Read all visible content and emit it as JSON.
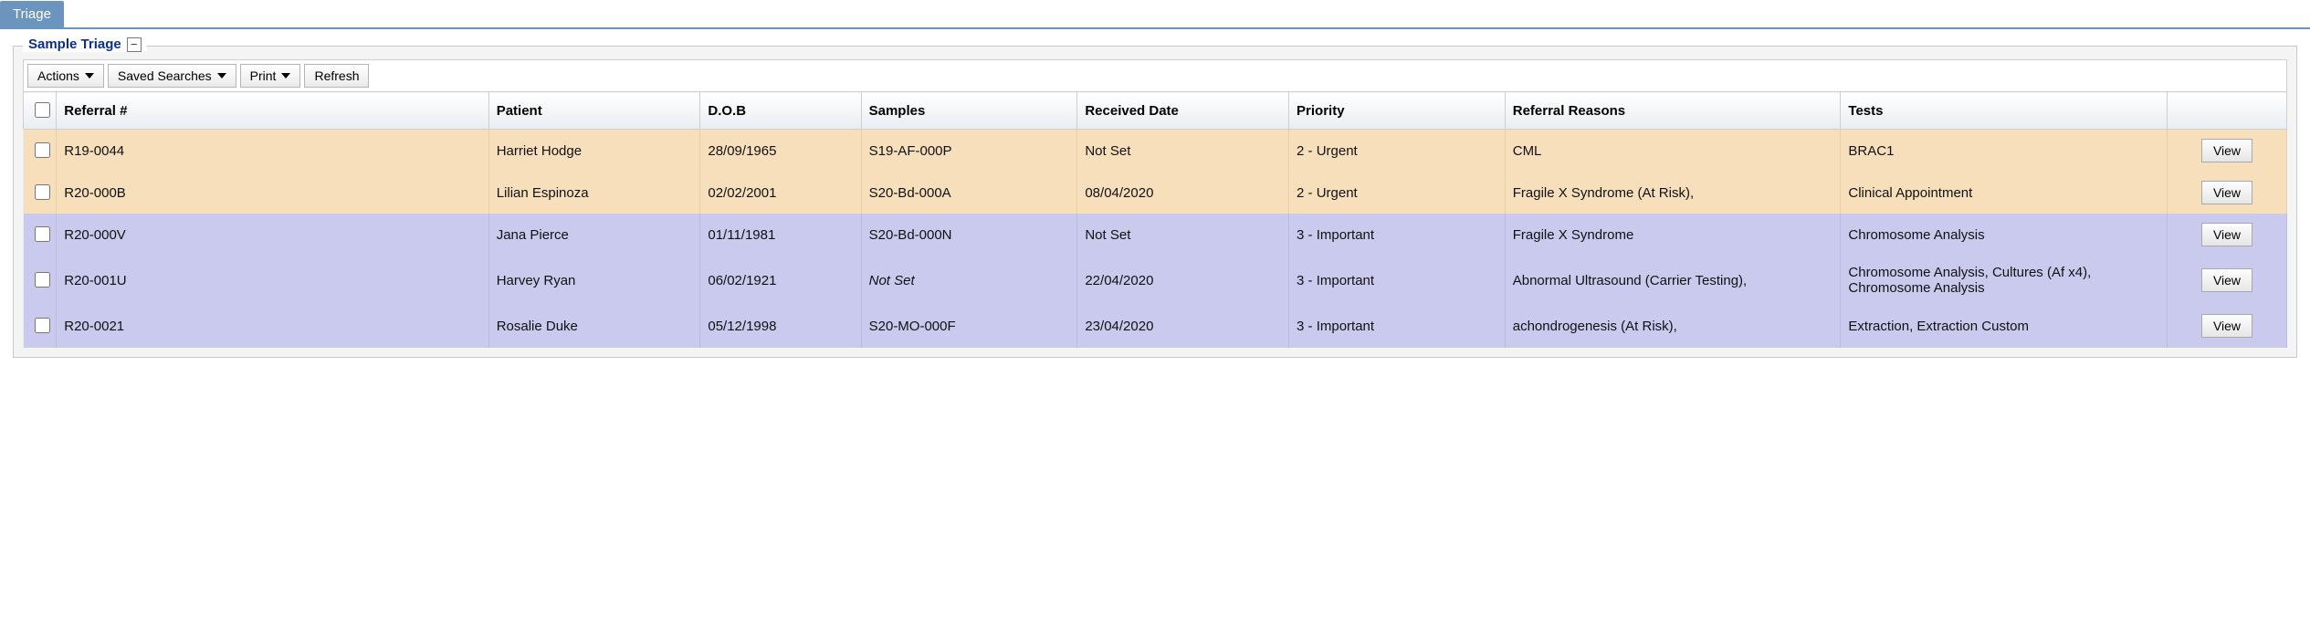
{
  "tab": {
    "label": "Triage"
  },
  "panel": {
    "title": "Sample Triage",
    "collapse_glyph": "−"
  },
  "toolbar": {
    "actions": "Actions",
    "saved_searches": "Saved Searches",
    "print": "Print",
    "refresh": "Refresh"
  },
  "columns": {
    "referral": "Referral #",
    "patient": "Patient",
    "dob": "D.O.B",
    "samples": "Samples",
    "received": "Received Date",
    "priority": "Priority",
    "reasons": "Referral Reasons",
    "tests": "Tests"
  },
  "view_label": "View",
  "priority_colors": {
    "urgent": "#f8dfbb",
    "important": "#c9caee"
  },
  "rows": [
    {
      "referral": "R19-0044",
      "patient": "Harriet Hodge",
      "dob": "28/09/1965",
      "samples": "S19-AF-000P",
      "samples_italic": false,
      "received": "Not Set",
      "priority": "2 - Urgent",
      "reasons": "CML",
      "tests": "BRAC1",
      "row_class": "row-urgent"
    },
    {
      "referral": "R20-000B",
      "patient": "Lilian Espinoza",
      "dob": "02/02/2001",
      "samples": "S20-Bd-000A",
      "samples_italic": false,
      "received": "08/04/2020",
      "priority": "2 - Urgent",
      "reasons": "Fragile X Syndrome (At Risk),",
      "tests": "Clinical Appointment",
      "row_class": "row-urgent"
    },
    {
      "referral": "R20-000V",
      "patient": "Jana Pierce",
      "dob": "01/11/1981",
      "samples": "S20-Bd-000N",
      "samples_italic": false,
      "received": "Not Set",
      "priority": "3 - Important",
      "reasons": "Fragile X Syndrome",
      "tests": "Chromosome Analysis",
      "row_class": "row-important"
    },
    {
      "referral": "R20-001U",
      "patient": "Harvey Ryan",
      "dob": "06/02/1921",
      "samples": "Not Set",
      "samples_italic": true,
      "received": "22/04/2020",
      "priority": "3 - Important",
      "reasons": "Abnormal Ultrasound (Carrier Testing),",
      "tests": "Chromosome Analysis, Cultures (Af x4), Chromosome Analysis",
      "row_class": "row-important"
    },
    {
      "referral": "R20-0021",
      "patient": "Rosalie Duke",
      "dob": "05/12/1998",
      "samples": "S20-MO-000F",
      "samples_italic": false,
      "received": "23/04/2020",
      "priority": "3 - Important",
      "reasons": "achondrogenesis (At Risk),",
      "tests": "Extraction, Extraction Custom",
      "row_class": "row-important"
    }
  ]
}
